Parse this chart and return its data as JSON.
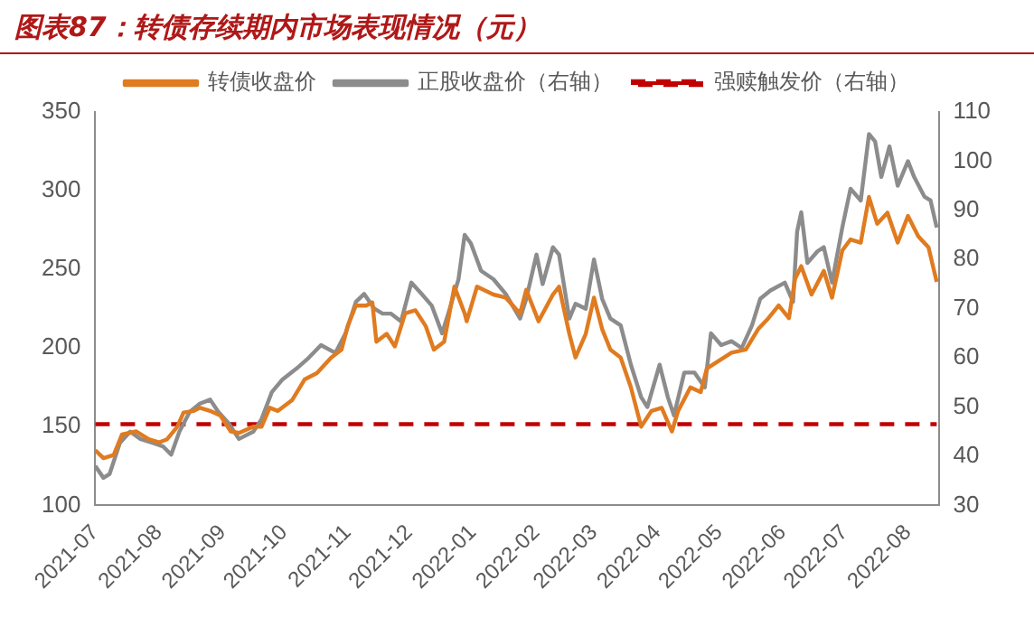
{
  "chart_data": {
    "type": "line",
    "title": "图表87：转债存续期内市场表现情况（元）",
    "legend": "top",
    "grid": false,
    "marker": "none",
    "xlim": [
      "2021-07-01",
      "2022-08-16"
    ],
    "xticks": [
      {
        "value": "2021-07-01",
        "label": "2021-07"
      },
      {
        "value": "2021-08-01",
        "label": "2021-08"
      },
      {
        "value": "2021-09-01",
        "label": "2021-09"
      },
      {
        "value": "2021-10-01",
        "label": "2021-10"
      },
      {
        "value": "2021-11-01",
        "label": "2021-11"
      },
      {
        "value": "2021-12-01",
        "label": "2021-12"
      },
      {
        "value": "2022-01-01",
        "label": "2022-01"
      },
      {
        "value": "2022-02-01",
        "label": "2022-02"
      },
      {
        "value": "2022-03-01",
        "label": "2022-03"
      },
      {
        "value": "2022-04-01",
        "label": "2022-04"
      },
      {
        "value": "2022-05-01",
        "label": "2022-05"
      },
      {
        "value": "2022-06-01",
        "label": "2022-06"
      },
      {
        "value": "2022-07-01",
        "label": "2022-07"
      },
      {
        "value": "2022-08-01",
        "label": "2022-08"
      }
    ],
    "ylim": [
      100,
      350
    ],
    "yticks": [
      100,
      150,
      200,
      250,
      300,
      350
    ],
    "y2lim": [
      30,
      110
    ],
    "y2ticks": [
      30,
      40,
      50,
      60,
      70,
      80,
      90,
      100,
      110
    ],
    "series": [
      {
        "name": "转债收盘价",
        "color": "#e07b20",
        "line_style": "solid",
        "x": [
          "2021-07-01",
          "2021-07-05",
          "2021-07-10",
          "2021-07-14",
          "2021-07-21",
          "2021-07-27",
          "2021-08-01",
          "2021-08-05",
          "2021-08-10",
          "2021-08-13",
          "2021-08-18",
          "2021-08-21",
          "2021-08-26",
          "2021-08-31",
          "2021-09-05",
          "2021-09-09",
          "2021-09-16",
          "2021-09-20",
          "2021-09-24",
          "2021-09-28",
          "2021-10-05",
          "2021-10-11",
          "2021-10-17",
          "2021-10-24",
          "2021-10-29",
          "2021-11-01",
          "2021-11-05",
          "2021-11-10",
          "2021-11-13",
          "2021-11-15",
          "2021-11-20",
          "2021-11-24",
          "2021-11-29",
          "2021-12-04",
          "2021-12-09",
          "2021-12-13",
          "2021-12-18",
          "2021-12-23",
          "2021-12-28",
          "2021-12-29",
          "2022-01-03",
          "2022-01-11",
          "2022-01-17",
          "2022-01-24",
          "2022-01-27",
          "2022-02-02",
          "2022-02-09",
          "2022-02-12",
          "2022-02-17",
          "2022-02-20",
          "2022-02-25",
          "2022-03-01",
          "2022-03-05",
          "2022-03-09",
          "2022-03-14",
          "2022-03-19",
          "2022-03-24",
          "2022-03-29",
          "2022-04-03",
          "2022-04-08",
          "2022-04-11",
          "2022-04-17",
          "2022-04-22",
          "2022-04-25",
          "2022-05-01",
          "2022-05-07",
          "2022-05-14",
          "2022-05-20",
          "2022-05-25",
          "2022-05-30",
          "2022-06-04",
          "2022-06-07",
          "2022-06-10",
          "2022-06-15",
          "2022-06-21",
          "2022-06-25",
          "2022-06-30",
          "2022-07-04",
          "2022-07-09",
          "2022-07-13",
          "2022-07-17",
          "2022-07-22",
          "2022-07-27",
          "2022-08-01",
          "2022-08-06",
          "2022-08-11",
          "2022-08-15"
        ],
        "values": [
          135,
          130,
          132,
          145,
          147,
          142,
          140,
          142,
          150,
          159,
          160,
          162,
          160,
          157,
          147,
          146,
          150,
          150,
          162,
          160,
          167,
          180,
          184,
          194,
          199,
          214,
          227,
          227,
          229,
          204,
          209,
          201,
          222,
          224,
          214,
          199,
          204,
          239,
          222,
          217,
          239,
          234,
          232,
          222,
          237,
          217,
          234,
          239,
          209,
          194,
          209,
          232,
          212,
          199,
          194,
          175,
          150,
          160,
          162,
          147,
          160,
          175,
          172,
          187,
          192,
          197,
          199,
          212,
          219,
          227,
          219,
          244,
          252,
          234,
          249,
          232,
          262,
          269,
          267,
          296,
          279,
          286,
          267,
          284,
          271,
          264,
          242
        ]
      },
      {
        "name": "正股收盘价（右轴）",
        "color": "#8c8c8c",
        "axis": "y2",
        "line_style": "solid",
        "x": [
          "2021-07-01",
          "2021-07-05",
          "2021-07-08",
          "2021-07-13",
          "2021-07-18",
          "2021-07-23",
          "2021-07-29",
          "2021-08-03",
          "2021-08-07",
          "2021-08-11",
          "2021-08-16",
          "2021-08-21",
          "2021-08-26",
          "2021-08-30",
          "2021-09-04",
          "2021-09-09",
          "2021-09-16",
          "2021-09-20",
          "2021-09-25",
          "2021-09-30",
          "2021-10-07",
          "2021-10-13",
          "2021-10-19",
          "2021-10-26",
          "2021-10-31",
          "2021-11-05",
          "2021-11-09",
          "2021-11-14",
          "2021-11-18",
          "2021-11-22",
          "2021-11-27",
          "2021-12-02",
          "2021-12-07",
          "2021-12-12",
          "2021-12-17",
          "2021-12-20",
          "2021-12-25",
          "2021-12-28",
          "2021-12-31",
          "2022-01-05",
          "2022-01-11",
          "2022-01-17",
          "2022-01-24",
          "2022-01-27",
          "2022-02-01",
          "2022-02-04",
          "2022-02-09",
          "2022-02-12",
          "2022-02-17",
          "2022-02-20",
          "2022-02-25",
          "2022-03-01",
          "2022-03-05",
          "2022-03-09",
          "2022-03-14",
          "2022-03-19",
          "2022-03-24",
          "2022-03-27",
          "2022-04-02",
          "2022-04-06",
          "2022-04-09",
          "2022-04-14",
          "2022-04-19",
          "2022-04-24",
          "2022-04-27",
          "2022-05-02",
          "2022-05-07",
          "2022-05-12",
          "2022-05-17",
          "2022-05-21",
          "2022-05-26",
          "2022-06-02",
          "2022-06-06",
          "2022-06-08",
          "2022-06-10",
          "2022-06-13",
          "2022-06-18",
          "2022-06-21",
          "2022-06-25",
          "2022-06-30",
          "2022-07-04",
          "2022-07-09",
          "2022-07-13",
          "2022-07-16",
          "2022-07-19",
          "2022-07-23",
          "2022-07-27",
          "2022-08-01",
          "2022-08-04",
          "2022-08-09",
          "2022-08-12",
          "2022-08-15"
        ],
        "values": [
          38,
          35.6,
          36.4,
          42.7,
          45,
          43.5,
          42.7,
          42,
          40.3,
          45,
          49,
          50.7,
          51.5,
          49,
          46.7,
          43.5,
          45,
          47.5,
          53,
          55.5,
          57.8,
          60,
          62.6,
          61,
          65,
          71.4,
          73,
          70,
          69,
          69,
          67.4,
          75.3,
          73,
          70.6,
          65,
          69,
          76,
          85,
          83.3,
          77.7,
          76,
          73,
          68,
          72,
          81,
          75,
          82.5,
          81,
          68,
          71,
          70,
          80,
          72,
          68,
          66.6,
          58.6,
          52,
          50,
          58.6,
          52,
          48.3,
          57,
          57,
          54,
          65,
          62.6,
          63.4,
          62,
          66.6,
          72,
          73.7,
          75.3,
          71.4,
          85.7,
          89.6,
          79.3,
          81.7,
          82.5,
          75.3,
          86.5,
          94.4,
          92,
          105.5,
          104,
          96.8,
          103,
          95,
          100,
          96.8,
          92.8,
          92,
          86.5
        ]
      },
      {
        "name": "强赎触发价（右轴）",
        "color": "#c00000",
        "axis": "y2",
        "line_style": "dashed",
        "x": [
          "2021-07-01",
          "2022-08-15"
        ],
        "values": [
          46.5,
          46.5
        ]
      }
    ]
  }
}
